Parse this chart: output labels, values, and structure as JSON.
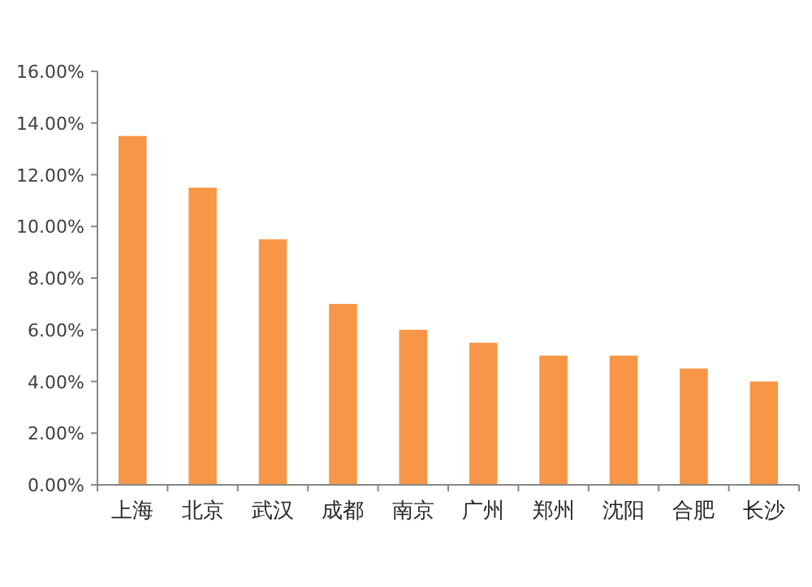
{
  "chart_data": {
    "type": "bar",
    "categories": [
      "上海",
      "北京",
      "武汉",
      "成都",
      "南京",
      "广州",
      "郑州",
      "沈阳",
      "合肥",
      "长沙"
    ],
    "values": [
      13.5,
      11.5,
      9.5,
      7.0,
      6.0,
      5.5,
      5.0,
      5.0,
      4.5,
      4.0
    ],
    "color": "#f79646",
    "ylim": [
      0,
      16
    ],
    "yticks": [
      {
        "value": 0,
        "label": "0.00%"
      },
      {
        "value": 2,
        "label": "2.00%"
      },
      {
        "value": 4,
        "label": "4.00%"
      },
      {
        "value": 6,
        "label": "6.00%"
      },
      {
        "value": 8,
        "label": "8.00%"
      },
      {
        "value": 10,
        "label": "10.00%"
      },
      {
        "value": 12,
        "label": "12.00%"
      },
      {
        "value": 14,
        "label": "14.00%"
      },
      {
        "value": 16,
        "label": "16.00%"
      }
    ],
    "grid": false,
    "legend": false
  }
}
